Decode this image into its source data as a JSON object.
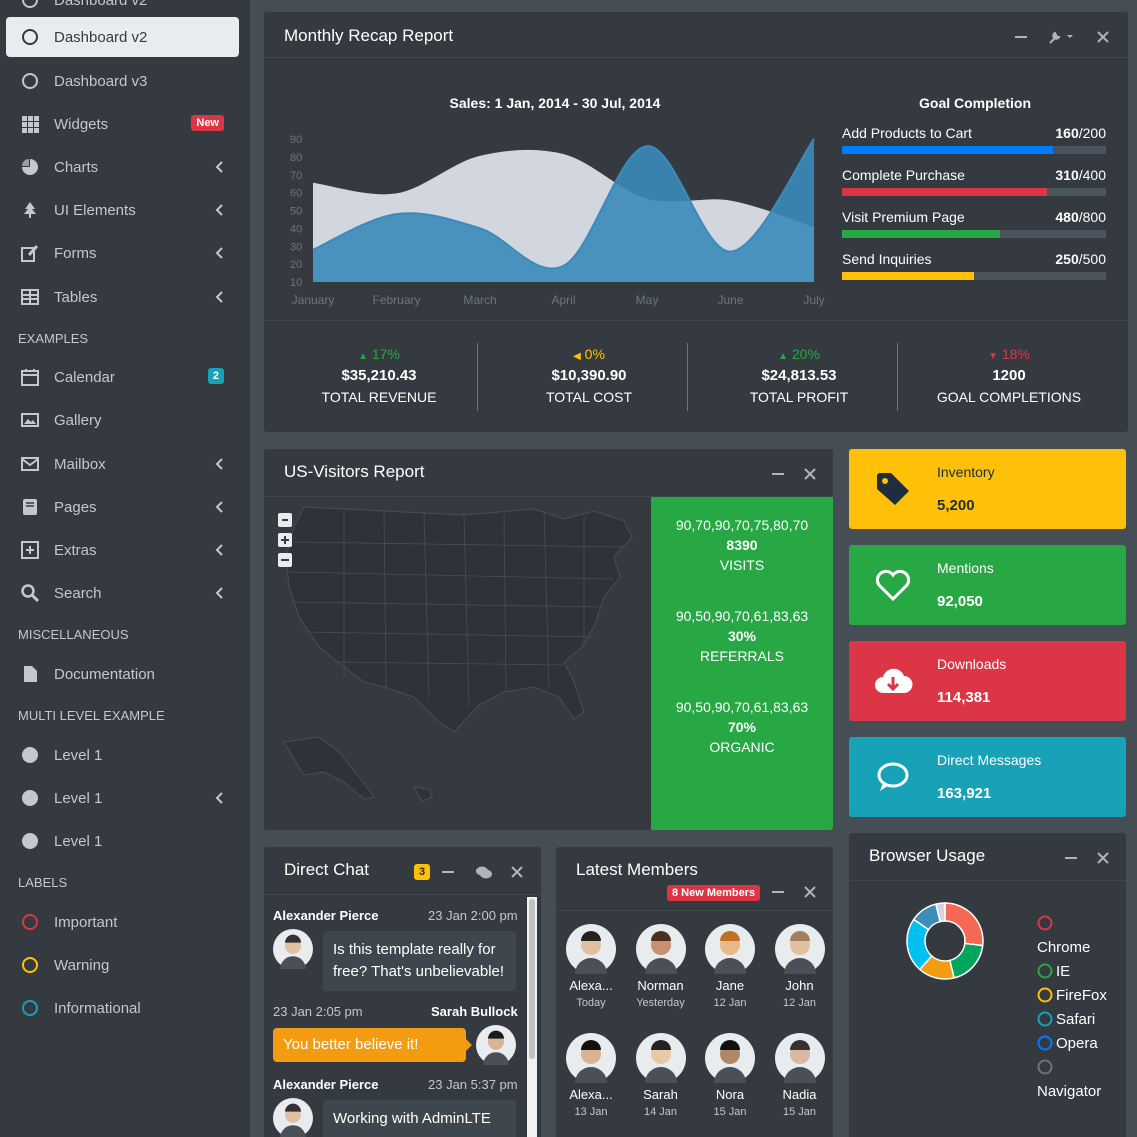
{
  "sidebar": {
    "top_item": "Dashboard v2",
    "items": [
      {
        "label": "Dashboard v2",
        "icon": "circle-outline-icon",
        "active": true
      },
      {
        "label": "Dashboard v3",
        "icon": "circle-outline-icon"
      },
      {
        "label": "Widgets",
        "icon": "grid-icon",
        "badge": "New",
        "badge_color": "#dc3545"
      },
      {
        "label": "Charts",
        "icon": "pie-chart-icon"
      },
      {
        "label": "UI Elements",
        "icon": "tree-icon"
      },
      {
        "label": "Forms",
        "icon": "edit-icon"
      },
      {
        "label": "Tables",
        "icon": "table-icon"
      },
      {
        "label": "Calendar",
        "icon": "calendar-icon",
        "badge": "2",
        "badge_color": "#17a2b8"
      },
      {
        "label": "Gallery",
        "icon": "image-icon"
      },
      {
        "label": "Mailbox",
        "icon": "envelope-icon"
      },
      {
        "label": "Pages",
        "icon": "book-icon"
      },
      {
        "label": "Extras",
        "icon": "plus-square-icon"
      },
      {
        "label": "Search",
        "icon": "search-icon"
      },
      {
        "label": "Documentation",
        "icon": "file-icon"
      },
      {
        "label": "Level 1",
        "icon": "circle-icon"
      },
      {
        "label": "Level 1",
        "icon": "circle-icon"
      },
      {
        "label": "Level 1",
        "icon": "circle-icon"
      },
      {
        "label": "Important",
        "icon": "circle-outline-icon",
        "color": "#dc3545"
      },
      {
        "label": "Warning",
        "icon": "circle-outline-icon",
        "color": "#ffc107"
      },
      {
        "label": "Informational",
        "icon": "circle-outline-icon",
        "color": "#17a2b8"
      }
    ],
    "headers": [
      "EXAMPLES",
      "MISCELLANEOUS",
      "MULTI LEVEL EXAMPLE",
      "LABELS"
    ]
  },
  "recap": {
    "title": "Monthly Recap Report",
    "chart_title": "Sales: 1 Jan, 2014 - 30 Jul, 2014",
    "goal_title": "Goal Completion",
    "goals": [
      {
        "label": "Add Products to Cart",
        "value": "160",
        "total": "/200",
        "fraction": 0.8,
        "color": "#007bff"
      },
      {
        "label": "Complete Purchase",
        "value": "310",
        "total": "/400",
        "fraction": 0.775,
        "color": "#dc3545"
      },
      {
        "label": "Visit Premium Page",
        "value": "480",
        "total": "/800",
        "fraction": 0.6,
        "color": "#28a745"
      },
      {
        "label": "Send Inquiries",
        "value": "250",
        "total": "/500",
        "fraction": 0.5,
        "color": "#ffc107"
      }
    ],
    "stats": [
      {
        "pct": "17%",
        "arrow": "▲",
        "color": "#28a745",
        "amount": "$35,210.43",
        "label": "TOTAL REVENUE"
      },
      {
        "pct": "0%",
        "arrow": "◀",
        "color": "#ffc107",
        "amount": "$10,390.90",
        "label": "TOTAL COST"
      },
      {
        "pct": "20%",
        "arrow": "▲",
        "color": "#28a745",
        "amount": "$24,813.53",
        "label": "TOTAL PROFIT"
      },
      {
        "pct": "18%",
        "arrow": "▼",
        "color": "#dc3545",
        "amount": "1200",
        "label": "GOAL COMPLETIONS"
      }
    ]
  },
  "chart_data": {
    "type": "area",
    "title": "Sales: 1 Jan, 2014 - 30 Jul, 2014",
    "categories": [
      "January",
      "February",
      "March",
      "April",
      "May",
      "June",
      "July"
    ],
    "ylim": [
      10,
      90
    ],
    "yticks": [
      10,
      20,
      30,
      40,
      50,
      60,
      70,
      80,
      90
    ],
    "series": [
      {
        "color": "#d2d6de",
        "values": [
          65,
          59,
          80,
          81,
          56,
          55,
          40
        ]
      },
      {
        "color": "#3b8bba",
        "values": [
          28,
          48,
          40,
          19,
          86,
          27,
          90
        ]
      }
    ]
  },
  "visitors": {
    "title": "US-Visitors Report",
    "stats": [
      {
        "spark": "90,70,90,70,75,80,70",
        "value": "8390",
        "label": "VISITS"
      },
      {
        "spark": "90,50,90,70,61,83,63",
        "value": "30%",
        "label": "REFERRALS"
      },
      {
        "spark": "90,50,90,70,61,83,63",
        "value": "70%",
        "label": "ORGANIC"
      }
    ]
  },
  "info_boxes": [
    {
      "text": "Inventory",
      "number": "5,200",
      "icon": "tag-icon",
      "bg": "#ffc107",
      "fg": "#1f2d3d"
    },
    {
      "text": "Mentions",
      "number": "92,050",
      "icon": "heart-icon",
      "bg": "#28a745",
      "fg": "#ffffff"
    },
    {
      "text": "Downloads",
      "number": "114,381",
      "icon": "cloud-download-icon",
      "bg": "#dc3545",
      "fg": "#ffffff"
    },
    {
      "text": "Direct Messages",
      "number": "163,921",
      "icon": "comment-icon",
      "bg": "#17a2b8",
      "fg": "#ffffff"
    }
  ],
  "chat": {
    "title": "Direct Chat",
    "badge": "3",
    "messages": [
      {
        "name": "Alexander Pierce",
        "time": "23 Jan 2:00 pm",
        "text": "Is this template really for free? That's unbelievable!",
        "side": "left"
      },
      {
        "name": "Sarah Bullock",
        "time": "23 Jan 2:05 pm",
        "text": "You better believe it!",
        "side": "right"
      },
      {
        "name": "Alexander Pierce",
        "time": "23 Jan 5:37 pm",
        "text": "Working with AdminLTE",
        "side": "left"
      }
    ]
  },
  "members": {
    "title": "Latest Members",
    "badge": "8 New Members",
    "list": [
      {
        "name": "Alexa...",
        "date": "Today"
      },
      {
        "name": "Norman",
        "date": "Yesterday"
      },
      {
        "name": "Jane",
        "date": "12 Jan"
      },
      {
        "name": "John",
        "date": "12 Jan"
      },
      {
        "name": "Alexa...",
        "date": "13 Jan"
      },
      {
        "name": "Sarah",
        "date": "14 Jan"
      },
      {
        "name": "Nora",
        "date": "15 Jan"
      },
      {
        "name": "Nadia",
        "date": "15 Jan"
      }
    ]
  },
  "browser": {
    "title": "Browser Usage",
    "legend": [
      {
        "label": "",
        "color": "#dc3545"
      },
      {
        "label": "Chrome",
        "color": ""
      },
      {
        "label": "IE",
        "color": "#28a745"
      },
      {
        "label": "FireFox",
        "color": "#ffc107"
      },
      {
        "label": "Safari",
        "color": "#17a2b8"
      },
      {
        "label": "Opera",
        "color": "#007bff"
      },
      {
        "label": "",
        "color": "#6c757d"
      },
      {
        "label": "Navigator",
        "color": ""
      }
    ],
    "slices": [
      {
        "value": 700,
        "color": "#f56954"
      },
      {
        "value": 500,
        "color": "#00a65a"
      },
      {
        "value": 400,
        "color": "#f39c12"
      },
      {
        "value": 600,
        "color": "#00c0ef"
      },
      {
        "value": 300,
        "color": "#3c8dbc"
      },
      {
        "value": 100,
        "color": "#d2d6de"
      }
    ]
  }
}
